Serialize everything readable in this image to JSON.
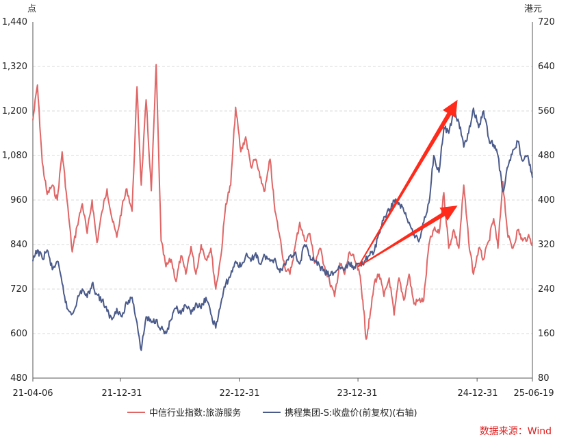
{
  "chart_data": {
    "type": "line",
    "left_axis": {
      "unit": "点",
      "ylim": [
        480,
        1440
      ],
      "ticks": [
        "1,440",
        "1,320",
        "1,200",
        "1,080",
        "960",
        "840",
        "720",
        "600",
        "480"
      ]
    },
    "right_axis": {
      "unit": "港元",
      "ylim": [
        80,
        720
      ],
      "ticks": [
        "720",
        "640",
        "560",
        "480",
        "400",
        "320",
        "240",
        "160",
        "80"
      ]
    },
    "x_ticks": [
      "21-04-06",
      "21-12-31",
      "22-12-31",
      "23-12-31",
      "24-12-31",
      "25-06-19"
    ],
    "x_tick_dates": [
      "2021-04-06",
      "2021-12-31",
      "2022-12-31",
      "2023-12-31",
      "2024-12-31",
      "2025-06-19"
    ],
    "grid": true,
    "legend_position": "bottom",
    "source": "数据来源：Wind",
    "series": [
      {
        "name": "中信行业指数:旅游服务",
        "axis": "left",
        "color": "#e06666",
        "points": [
          [
            "2021-04-06",
            1175
          ],
          [
            "2021-04-20",
            1270
          ],
          [
            "2021-05-05",
            1060
          ],
          [
            "2021-05-20",
            975
          ],
          [
            "2021-06-05",
            1000
          ],
          [
            "2021-06-20",
            960
          ],
          [
            "2021-07-05",
            1090
          ],
          [
            "2021-07-20",
            960
          ],
          [
            "2021-08-05",
            820
          ],
          [
            "2021-08-20",
            890
          ],
          [
            "2021-09-05",
            950
          ],
          [
            "2021-09-20",
            870
          ],
          [
            "2021-10-05",
            960
          ],
          [
            "2021-10-20",
            845
          ],
          [
            "2021-11-05",
            930
          ],
          [
            "2021-11-20",
            990
          ],
          [
            "2021-12-05",
            910
          ],
          [
            "2021-12-20",
            860
          ],
          [
            "2022-01-05",
            940
          ],
          [
            "2022-01-20",
            990
          ],
          [
            "2022-02-05",
            930
          ],
          [
            "2022-02-20",
            1265
          ],
          [
            "2022-03-05",
            1000
          ],
          [
            "2022-03-20",
            1230
          ],
          [
            "2022-04-05",
            985
          ],
          [
            "2022-04-20",
            1325
          ],
          [
            "2022-05-05",
            850
          ],
          [
            "2022-05-20",
            780
          ],
          [
            "2022-06-05",
            800
          ],
          [
            "2022-06-20",
            740
          ],
          [
            "2022-07-05",
            810
          ],
          [
            "2022-07-20",
            760
          ],
          [
            "2022-08-05",
            835
          ],
          [
            "2022-08-20",
            760
          ],
          [
            "2022-09-05",
            840
          ],
          [
            "2022-09-20",
            800
          ],
          [
            "2022-10-05",
            830
          ],
          [
            "2022-10-20",
            720
          ],
          [
            "2022-11-05",
            810
          ],
          [
            "2022-11-20",
            950
          ],
          [
            "2022-12-05",
            1000
          ],
          [
            "2022-12-20",
            1210
          ],
          [
            "2023-01-05",
            1090
          ],
          [
            "2023-01-20",
            1130
          ],
          [
            "2023-02-05",
            1050
          ],
          [
            "2023-02-20",
            1070
          ],
          [
            "2023-03-05",
            1020
          ],
          [
            "2023-03-20",
            985
          ],
          [
            "2023-04-05",
            1070
          ],
          [
            "2023-04-20",
            930
          ],
          [
            "2023-05-05",
            860
          ],
          [
            "2023-05-20",
            780
          ],
          [
            "2023-06-05",
            760
          ],
          [
            "2023-06-20",
            830
          ],
          [
            "2023-07-05",
            900
          ],
          [
            "2023-07-20",
            850
          ],
          [
            "2023-08-05",
            870
          ],
          [
            "2023-08-20",
            790
          ],
          [
            "2023-09-05",
            830
          ],
          [
            "2023-09-20",
            780
          ],
          [
            "2023-10-05",
            740
          ],
          [
            "2023-10-20",
            700
          ],
          [
            "2023-11-05",
            790
          ],
          [
            "2023-11-20",
            760
          ],
          [
            "2023-12-05",
            820
          ],
          [
            "2023-12-20",
            800
          ],
          [
            "2024-01-05",
            760
          ],
          [
            "2024-01-15",
            690
          ],
          [
            "2024-01-25",
            585
          ],
          [
            "2024-02-05",
            640
          ],
          [
            "2024-02-20",
            740
          ],
          [
            "2024-03-05",
            760
          ],
          [
            "2024-03-20",
            700
          ],
          [
            "2024-04-05",
            750
          ],
          [
            "2024-04-20",
            650
          ],
          [
            "2024-05-05",
            750
          ],
          [
            "2024-05-20",
            690
          ],
          [
            "2024-06-05",
            760
          ],
          [
            "2024-06-20",
            680
          ],
          [
            "2024-07-05",
            690
          ],
          [
            "2024-07-20",
            690
          ],
          [
            "2024-08-05",
            840
          ],
          [
            "2024-08-20",
            880
          ],
          [
            "2024-09-05",
            870
          ],
          [
            "2024-09-20",
            980
          ],
          [
            "2024-10-05",
            830
          ],
          [
            "2024-10-20",
            880
          ],
          [
            "2024-11-05",
            830
          ],
          [
            "2024-11-20",
            1000
          ],
          [
            "2024-12-05",
            850
          ],
          [
            "2024-12-20",
            760
          ],
          [
            "2025-01-05",
            830
          ],
          [
            "2025-01-20",
            800
          ],
          [
            "2025-02-05",
            850
          ],
          [
            "2025-02-20",
            910
          ],
          [
            "2025-03-05",
            830
          ],
          [
            "2025-03-20",
            1010
          ],
          [
            "2025-04-05",
            860
          ],
          [
            "2025-04-20",
            830
          ],
          [
            "2025-05-05",
            880
          ],
          [
            "2025-05-20",
            850
          ],
          [
            "2025-06-05",
            860
          ],
          [
            "2025-06-19",
            845
          ]
        ]
      },
      {
        "name": "携程集团-S:收盘价(前复权)(右轴)",
        "axis": "right",
        "color": "#4a5a8a",
        "points": [
          [
            "2021-04-06",
            290
          ],
          [
            "2021-04-20",
            310
          ],
          [
            "2021-05-05",
            295
          ],
          [
            "2021-05-20",
            310
          ],
          [
            "2021-06-05",
            275
          ],
          [
            "2021-06-20",
            290
          ],
          [
            "2021-07-05",
            250
          ],
          [
            "2021-07-20",
            205
          ],
          [
            "2021-08-05",
            195
          ],
          [
            "2021-08-20",
            220
          ],
          [
            "2021-09-05",
            240
          ],
          [
            "2021-09-20",
            225
          ],
          [
            "2021-10-05",
            250
          ],
          [
            "2021-10-20",
            230
          ],
          [
            "2021-11-05",
            220
          ],
          [
            "2021-11-20",
            200
          ],
          [
            "2021-12-05",
            185
          ],
          [
            "2021-12-20",
            205
          ],
          [
            "2022-01-05",
            190
          ],
          [
            "2022-01-20",
            215
          ],
          [
            "2022-02-05",
            225
          ],
          [
            "2022-02-20",
            180
          ],
          [
            "2022-03-05",
            130
          ],
          [
            "2022-03-20",
            190
          ],
          [
            "2022-04-05",
            180
          ],
          [
            "2022-04-20",
            185
          ],
          [
            "2022-05-05",
            170
          ],
          [
            "2022-05-20",
            160
          ],
          [
            "2022-06-05",
            185
          ],
          [
            "2022-06-20",
            205
          ],
          [
            "2022-07-05",
            195
          ],
          [
            "2022-07-20",
            210
          ],
          [
            "2022-08-05",
            195
          ],
          [
            "2022-08-20",
            215
          ],
          [
            "2022-09-05",
            205
          ],
          [
            "2022-09-20",
            225
          ],
          [
            "2022-10-05",
            195
          ],
          [
            "2022-10-20",
            170
          ],
          [
            "2022-11-05",
            215
          ],
          [
            "2022-11-20",
            250
          ],
          [
            "2022-12-05",
            265
          ],
          [
            "2022-12-20",
            290
          ],
          [
            "2023-01-05",
            280
          ],
          [
            "2023-01-20",
            300
          ],
          [
            "2023-02-05",
            290
          ],
          [
            "2023-02-20",
            305
          ],
          [
            "2023-03-05",
            285
          ],
          [
            "2023-03-20",
            300
          ],
          [
            "2023-04-05",
            290
          ],
          [
            "2023-04-20",
            295
          ],
          [
            "2023-05-05",
            270
          ],
          [
            "2023-05-20",
            285
          ],
          [
            "2023-06-05",
            300
          ],
          [
            "2023-06-20",
            305
          ],
          [
            "2023-07-05",
            285
          ],
          [
            "2023-07-20",
            320
          ],
          [
            "2023-08-05",
            300
          ],
          [
            "2023-08-20",
            290
          ],
          [
            "2023-09-05",
            280
          ],
          [
            "2023-09-20",
            270
          ],
          [
            "2023-10-05",
            265
          ],
          [
            "2023-10-20",
            270
          ],
          [
            "2023-11-05",
            280
          ],
          [
            "2023-11-20",
            275
          ],
          [
            "2023-12-05",
            285
          ],
          [
            "2023-12-20",
            280
          ],
          [
            "2024-01-05",
            285
          ],
          [
            "2024-01-20",
            290
          ],
          [
            "2024-02-05",
            300
          ],
          [
            "2024-02-20",
            310
          ],
          [
            "2024-03-05",
            340
          ],
          [
            "2024-03-20",
            370
          ],
          [
            "2024-04-05",
            380
          ],
          [
            "2024-04-20",
            400
          ],
          [
            "2024-05-05",
            395
          ],
          [
            "2024-05-20",
            380
          ],
          [
            "2024-06-05",
            360
          ],
          [
            "2024-06-20",
            340
          ],
          [
            "2024-07-05",
            325
          ],
          [
            "2024-07-20",
            360
          ],
          [
            "2024-08-05",
            395
          ],
          [
            "2024-08-20",
            480
          ],
          [
            "2024-09-05",
            450
          ],
          [
            "2024-09-20",
            530
          ],
          [
            "2024-10-05",
            520
          ],
          [
            "2024-10-20",
            560
          ],
          [
            "2024-11-05",
            540
          ],
          [
            "2024-11-20",
            495
          ],
          [
            "2024-12-05",
            520
          ],
          [
            "2024-12-20",
            565
          ],
          [
            "2025-01-05",
            530
          ],
          [
            "2025-01-20",
            560
          ],
          [
            "2025-02-05",
            510
          ],
          [
            "2025-02-20",
            500
          ],
          [
            "2025-03-05",
            480
          ],
          [
            "2025-03-20",
            415
          ],
          [
            "2025-04-05",
            460
          ],
          [
            "2025-04-20",
            490
          ],
          [
            "2025-05-05",
            505
          ],
          [
            "2025-05-20",
            470
          ],
          [
            "2025-06-05",
            480
          ],
          [
            "2025-06-19",
            440
          ]
        ]
      }
    ],
    "annotations": [
      {
        "type": "arrow",
        "color": "#ff2a1a",
        "from": [
          "2023-12-31",
          280
        ],
        "to": [
          "2024-11-01",
          580
        ],
        "axis": "right"
      },
      {
        "type": "arrow",
        "color": "#ff2a1a",
        "from": [
          "2023-12-31",
          280
        ],
        "to": [
          "2024-11-01",
          390
        ],
        "axis": "right"
      }
    ]
  },
  "colors": {
    "grid": "#d9d9d9",
    "axis": "#555555",
    "source_text": "#e02020"
  }
}
